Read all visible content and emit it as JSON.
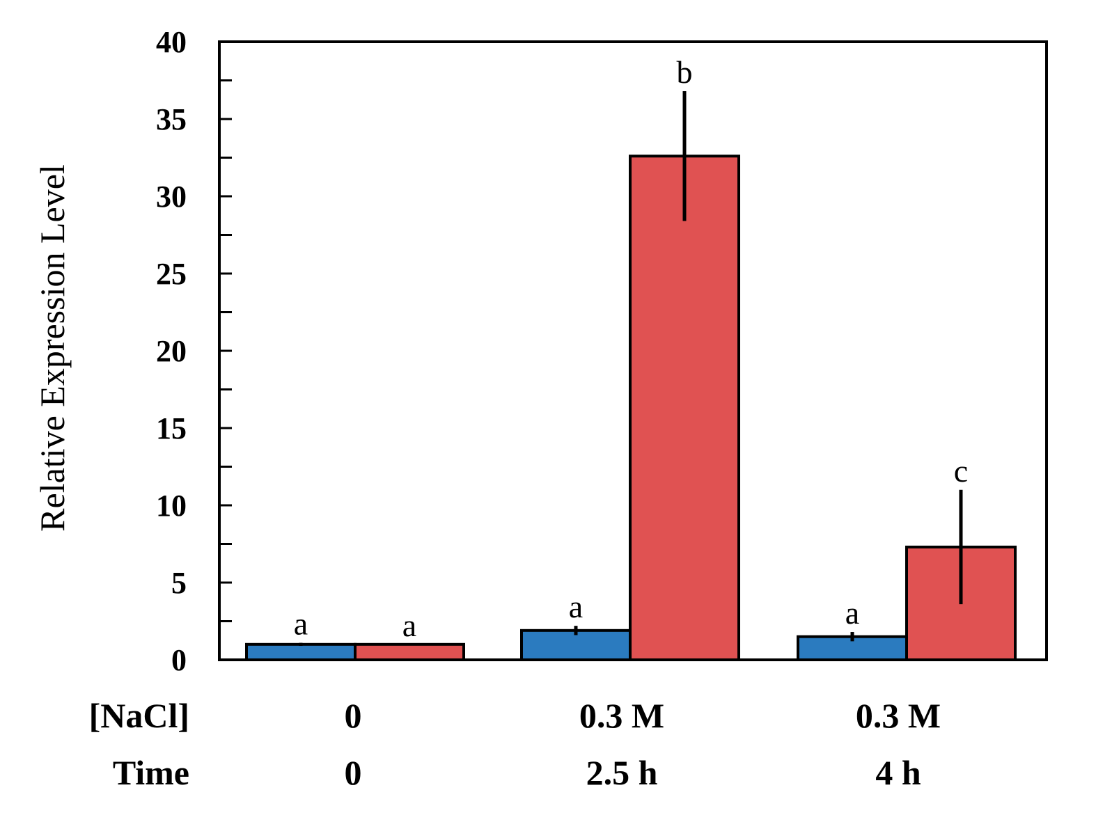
{
  "chart_data": {
    "type": "bar",
    "ylabel": "Relative Expression Level",
    "ylim": [
      0,
      40
    ],
    "y_ticks": [
      "0",
      "5",
      "10",
      "15",
      "20",
      "25",
      "30",
      "35",
      "40"
    ],
    "y_tick_values": [
      0,
      5,
      10,
      15,
      20,
      25,
      30,
      35,
      40
    ],
    "y_minor_step": 2.5,
    "grid": false,
    "legend": "none",
    "category_rows": [
      {
        "label": "[NaCl]",
        "values": [
          "0",
          "0.3 M",
          "0.3 M"
        ]
      },
      {
        "label": "Time",
        "values": [
          "0",
          "2.5 h",
          "4 h"
        ]
      }
    ],
    "series": [
      {
        "color": "#2b7bbf",
        "values": [
          1.0,
          1.9,
          1.5
        ],
        "errors": [
          0.1,
          0.3,
          0.3
        ],
        "sig": [
          "a",
          "a",
          "a"
        ]
      },
      {
        "color": "#e05252",
        "values": [
          1.0,
          32.6,
          7.3
        ],
        "errors": [
          0.0,
          4.2,
          3.7
        ],
        "sig": [
          "a",
          "b",
          "c"
        ]
      }
    ]
  }
}
